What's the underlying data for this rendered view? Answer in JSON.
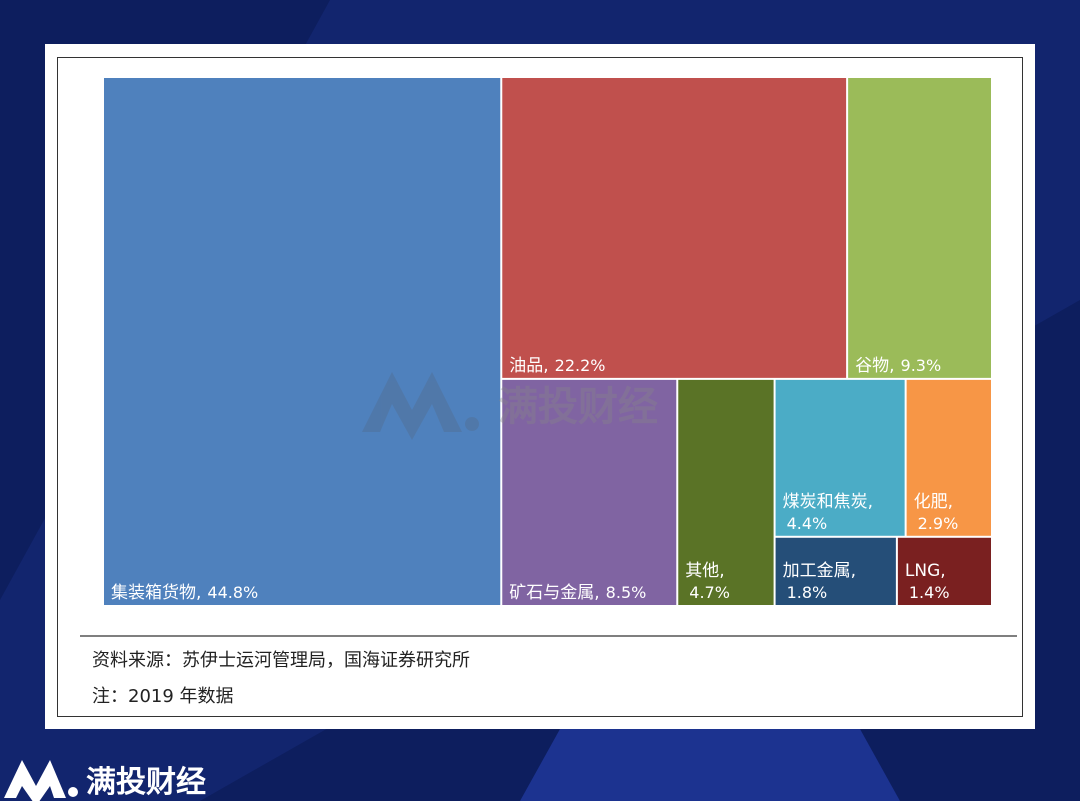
{
  "chart_data": {
    "type": "treemap",
    "categories": [
      "集装箱货物,",
      "油品,",
      "谷物,",
      "矿石与金属,",
      "其他,",
      "煤炭和焦炭,",
      "化肥,",
      "加工金属,",
      "LNG,"
    ],
    "values": [
      44.8,
      22.2,
      9.3,
      8.5,
      4.7,
      4.4,
      2.9,
      1.8,
      1.4
    ],
    "value_labels": [
      "44.8%",
      "22.2%",
      "9.3%",
      "8.5%",
      "4.7%",
      "4.4%",
      "2.9%",
      "1.8%",
      "1.4%"
    ],
    "colors": [
      "#4f81bd",
      "#c0504d",
      "#9bbb59",
      "#8064a2",
      "#5a7326",
      "#4bacc6",
      "#f79646",
      "#254e78",
      "#7a2020"
    ],
    "source": "资料来源：苏伊士运河管理局，国海证券研究所",
    "note": "注：2019 年数据"
  },
  "watermark": "满投财经",
  "brand": "满投财经"
}
